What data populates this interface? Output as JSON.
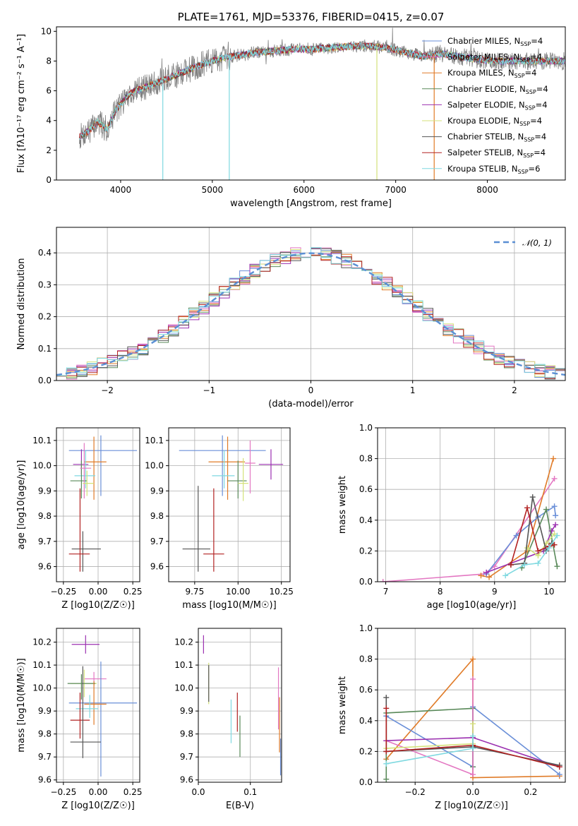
{
  "colors": {
    "Chabrier MILES": "#6a8fd8",
    "Salpeter MILES": "#e377c2",
    "Kroupa MILES": "#e07b28",
    "Chabrier ELODIE": "#5a8a5a",
    "Salpeter ELODIE": "#9b30b0",
    "Kroupa ELODIE": "#d4e27a",
    "Chabrier STELIB": "#555555",
    "Salpeter STELIB": "#b22222",
    "Kroupa STELIB": "#7fd9e0"
  },
  "chart_data": [
    {
      "id": "spectrum",
      "type": "line",
      "title": "PLATE=1761, MJD=53376, FIBERID=0415, z=0.07",
      "xlabel": "wavelength [Angstrom, rest frame]",
      "ylabel": "Flux [fλ10⁻¹⁷ erg cm⁻² s⁻¹ A⁻¹]",
      "xlim": [
        3300,
        8850
      ],
      "ylim": [
        0,
        10.3
      ],
      "xticks": [
        4000,
        5000,
        6000,
        7000,
        8000
      ],
      "yticks": [
        0,
        2,
        4,
        6,
        8,
        10
      ],
      "grid": false,
      "legend_position": "upper-right",
      "legend": [
        {
          "name": "Chabrier MILES, NSSP=4",
          "model": "Chabrier MILES"
        },
        {
          "name": "Salpeter MILES, NSSP=4",
          "model": "Salpeter MILES"
        },
        {
          "name": "Kroupa MILES, NSSP=4",
          "model": "Kroupa MILES"
        },
        {
          "name": "Chabrier ELODIE, NSSP=4",
          "model": "Chabrier ELODIE"
        },
        {
          "name": "Salpeter ELODIE, NSSP=4",
          "model": "Salpeter ELODIE"
        },
        {
          "name": "Kroupa ELODIE, NSSP=4",
          "model": "Kroupa ELODIE"
        },
        {
          "name": "Chabrier STELIB, NSSP=4",
          "model": "Chabrier STELIB"
        },
        {
          "name": "Salpeter STELIB, NSSP=4",
          "model": "Salpeter STELIB"
        },
        {
          "name": "Kroupa STELIB, NSSP=6",
          "model": "Kroupa STELIB"
        }
      ],
      "continuum": {
        "x": [
          3550,
          3650,
          3750,
          3850,
          3950,
          4050,
          4150,
          4300,
          4500,
          4700,
          4900,
          5100,
          5300,
          5500,
          5700,
          5900,
          6100,
          6300,
          6500,
          6700,
          6900,
          7100,
          7300,
          7500,
          7700,
          7900,
          8100,
          8300,
          8500,
          8700,
          8850
        ],
        "y": [
          2.9,
          3.3,
          3.9,
          3.4,
          4.7,
          5.5,
          6.0,
          6.3,
          6.8,
          7.3,
          7.8,
          8.2,
          8.4,
          8.6,
          8.7,
          8.8,
          8.8,
          8.9,
          9.0,
          9.0,
          8.9,
          8.6,
          8.3,
          8.5,
          8.3,
          8.1,
          8.0,
          8.0,
          8.0,
          8.0,
          8.0
        ]
      },
      "spikes": [
        {
          "x": 4460,
          "y": 0,
          "model": "Kroupa STELIB"
        },
        {
          "x": 5185,
          "y": 0,
          "model": "Kroupa STELIB"
        },
        {
          "x": 6795,
          "y": 0,
          "model": "Kroupa ELODIE"
        },
        {
          "x": 7420,
          "y": 0,
          "model": "Kroupa MILES"
        }
      ]
    },
    {
      "id": "residuals",
      "type": "histogram",
      "xlabel": "(data-model)/error",
      "ylabel": "Normed distribution",
      "xlim": [
        -2.5,
        2.5
      ],
      "ylim": [
        0,
        0.48
      ],
      "xticks": [
        -2,
        -1,
        0,
        1,
        2
      ],
      "yticks": [
        0.0,
        0.1,
        0.2,
        0.3,
        0.4
      ],
      "grid": true,
      "legend_position": "upper-right",
      "legend": [
        {
          "name": "𝒩(0, 1)",
          "style": "dashed",
          "color": "#5b8fd4"
        }
      ],
      "bin_width": 0.1
    },
    {
      "id": "age-vs-Z",
      "type": "errorbar",
      "xlabel": "Z [log10(Z/Z☉)]",
      "ylabel": "age  [log10(age/yr)]",
      "xlim": [
        -0.3,
        0.3
      ],
      "ylim": [
        9.54,
        10.15
      ],
      "xticks": [
        -0.25,
        0.0,
        0.25
      ],
      "yticks": [
        9.6,
        9.7,
        9.8,
        9.9,
        10.0,
        10.1
      ],
      "grid": true,
      "points": [
        {
          "model": "Chabrier MILES",
          "x": 0.02,
          "y": 10.06,
          "xerr": [
            0.23,
            0.26
          ],
          "yerr": [
            0.18,
            0.06
          ]
        },
        {
          "model": "Kroupa MILES",
          "x": -0.03,
          "y": 10.015,
          "xerr": [
            0.07,
            0.09
          ],
          "yerr": [
            0.15,
            0.1
          ]
        },
        {
          "model": "Salpeter ELODIE",
          "x": -0.12,
          "y": 10.005,
          "xerr": [
            0.06,
            0.05
          ],
          "yerr": [
            0.04,
            0.06
          ]
        },
        {
          "model": "Kroupa STELIB",
          "x": -0.09,
          "y": 9.96,
          "xerr": [
            0.08,
            0.07
          ],
          "yerr": [
            0.05,
            0.1
          ]
        },
        {
          "model": "Chabrier ELODIE",
          "x": -0.12,
          "y": 9.94,
          "xerr": [
            0.08,
            0.04
          ],
          "yerr": [
            0.07,
            0.08
          ]
        },
        {
          "model": "Chabrier STELIB",
          "x": -0.11,
          "y": 9.67,
          "xerr": [
            0.08,
            0.13
          ],
          "yerr": [
            0.09,
            0.07
          ]
        },
        {
          "model": "Salpeter STELIB",
          "x": -0.13,
          "y": 9.65,
          "xerr": [
            0.08,
            0.07
          ],
          "yerr": [
            0.07,
            0.26
          ]
        },
        {
          "model": "Salpeter MILES",
          "x": -0.1,
          "y": 9.99,
          "xerr": [
            0.03,
            0.05
          ],
          "yerr": [
            0.12,
            0.1
          ]
        },
        {
          "model": "Kroupa ELODIE",
          "x": -0.08,
          "y": 9.93,
          "xerr": [
            0.03,
            0.05
          ],
          "yerr": [
            0.05,
            0.05
          ]
        }
      ]
    },
    {
      "id": "age-vs-mass",
      "type": "errorbar",
      "xlabel": "mass [log10(M/M☉)]",
      "ylabel": "",
      "xlim": [
        9.6,
        10.3
      ],
      "ylim": [
        9.54,
        10.15
      ],
      "xticks": [
        9.75,
        10.0,
        10.25
      ],
      "yticks": [
        9.6,
        9.7,
        9.8,
        9.9,
        10.0,
        10.1
      ],
      "grid": true,
      "points": [
        {
          "model": "Chabrier MILES",
          "x": 9.91,
          "y": 10.06,
          "xerr": [
            0.25,
            0.25
          ],
          "yerr": [
            0.18,
            0.06
          ]
        },
        {
          "model": "Kroupa MILES",
          "x": 9.94,
          "y": 10.015,
          "xerr": [
            0.11,
            0.1
          ],
          "yerr": [
            0.15,
            0.1
          ]
        },
        {
          "model": "Salpeter ELODIE",
          "x": 10.19,
          "y": 10.005,
          "xerr": [
            0.07,
            0.07
          ],
          "yerr": [
            0.06,
            0.06
          ]
        },
        {
          "model": "Kroupa STELIB",
          "x": 9.92,
          "y": 9.96,
          "xerr": [
            0.07,
            0.06
          ],
          "yerr": [
            0.05,
            0.1
          ]
        },
        {
          "model": "Chabrier ELODIE",
          "x": 10.0,
          "y": 9.94,
          "xerr": [
            0.06,
            0.05
          ],
          "yerr": [
            0.07,
            0.08
          ]
        },
        {
          "model": "Chabrier STELIB",
          "x": 9.77,
          "y": 9.67,
          "xerr": [
            0.09,
            0.07
          ],
          "yerr": [
            0.09,
            0.25
          ]
        },
        {
          "model": "Salpeter STELIB",
          "x": 9.86,
          "y": 9.65,
          "xerr": [
            0.06,
            0.06
          ],
          "yerr": [
            0.07,
            0.26
          ]
        },
        {
          "model": "Salpeter MILES",
          "x": 10.07,
          "y": 10.01,
          "xerr": [
            0.03,
            0.03
          ],
          "yerr": [
            0.12,
            0.09
          ]
        },
        {
          "model": "Kroupa ELODIE",
          "x": 10.03,
          "y": 9.93,
          "xerr": [
            0.03,
            0.03
          ],
          "yerr": [
            0.07,
            0.1
          ]
        }
      ]
    },
    {
      "id": "mass-weight-vs-age",
      "type": "line",
      "xlabel": "age  [log10(age/yr)]",
      "ylabel": "mass weight",
      "xlim": [
        6.85,
        10.3
      ],
      "ylim": [
        0,
        1.0
      ],
      "xticks": [
        7,
        8,
        9,
        10
      ],
      "yticks": [
        0.0,
        0.2,
        0.4,
        0.6,
        0.8,
        1.0
      ],
      "grid": true,
      "series": [
        {
          "model": "Salpeter MILES",
          "x": [
            6.95,
            8.8,
            9.0,
            10.1
          ],
          "y": [
            0.0,
            0.05,
            0.1,
            0.67
          ]
        },
        {
          "model": "Kroupa MILES",
          "x": [
            8.75,
            8.9,
            9.6,
            10.08
          ],
          "y": [
            0.04,
            0.03,
            0.2,
            0.8
          ]
        },
        {
          "model": "Chabrier MILES",
          "x": [
            8.85,
            9.4,
            9.8,
            10.1,
            10.12
          ],
          "y": [
            0.05,
            0.3,
            0.42,
            0.49,
            0.43
          ]
        },
        {
          "model": "Salpeter ELODIE",
          "x": [
            8.85,
            9.9,
            10.05,
            10.12
          ],
          "y": [
            0.06,
            0.2,
            0.33,
            0.37
          ]
        },
        {
          "model": "Chabrier ELODIE",
          "x": [
            9.5,
            9.95,
            10.15
          ],
          "y": [
            0.09,
            0.47,
            0.1
          ]
        },
        {
          "model": "Kroupa ELODIE",
          "x": [
            9.6,
            9.8,
            9.95,
            10.1
          ],
          "y": [
            0.22,
            0.17,
            0.25,
            0.31
          ]
        },
        {
          "model": "Chabrier STELIB",
          "x": [
            9.3,
            9.55,
            9.7,
            9.95,
            10.05
          ],
          "y": [
            0.11,
            0.12,
            0.55,
            0.2,
            0.25
          ]
        },
        {
          "model": "Salpeter STELIB",
          "x": [
            9.3,
            9.6,
            9.8,
            10.0,
            10.1
          ],
          "y": [
            0.11,
            0.48,
            0.2,
            0.23,
            0.24
          ]
        },
        {
          "model": "Kroupa STELIB",
          "x": [
            9.2,
            9.55,
            9.8,
            10.0,
            10.15
          ],
          "y": [
            0.04,
            0.11,
            0.12,
            0.22,
            0.3
          ]
        }
      ]
    },
    {
      "id": "mass-vs-Z",
      "type": "errorbar",
      "xlabel": "Z [log10(Z/Z☉)]",
      "ylabel": "mass [log10(M/M☉)]",
      "xlim": [
        -0.3,
        0.3
      ],
      "ylim": [
        9.59,
        10.26
      ],
      "xticks": [
        -0.25,
        0.0,
        0.25
      ],
      "yticks": [
        9.6,
        9.7,
        9.8,
        9.9,
        10.0,
        10.1,
        10.2
      ],
      "grid": true,
      "points": [
        {
          "model": "Salpeter ELODIE",
          "x": -0.09,
          "y": 10.19,
          "xerr": [
            0.1,
            0.1
          ],
          "yerr": [
            0.04,
            0.04
          ]
        },
        {
          "model": "Salpeter MILES",
          "x": -0.03,
          "y": 10.04,
          "xerr": [
            0.07,
            0.09
          ],
          "yerr": [
            0.03,
            0.03
          ]
        },
        {
          "model": "Kroupa ELODIE",
          "x": -0.1,
          "y": 10.02,
          "xerr": [
            0.1,
            0.09
          ],
          "yerr": [
            0.06,
            0.06
          ]
        },
        {
          "model": "Chabrier ELODIE",
          "x": -0.12,
          "y": 10.02,
          "xerr": [
            0.1,
            0.1
          ],
          "yerr": [
            0.07,
            0.04
          ]
        },
        {
          "model": "Chabrier MILES",
          "x": 0.02,
          "y": 9.935,
          "xerr": [
            0.23,
            0.26
          ],
          "yerr": [
            0.32,
            0.18
          ]
        },
        {
          "model": "Kroupa MILES",
          "x": -0.03,
          "y": 9.93,
          "xerr": [
            0.07,
            0.09
          ],
          "yerr": [
            0.09,
            0.1
          ]
        },
        {
          "model": "Kroupa STELIB",
          "x": -0.06,
          "y": 9.91,
          "xerr": [
            0.1,
            0.06
          ],
          "yerr": [
            0.04,
            0.06
          ]
        },
        {
          "model": "Salpeter STELIB",
          "x": -0.13,
          "y": 9.86,
          "xerr": [
            0.07,
            0.07
          ],
          "yerr": [
            0.08,
            0.12
          ]
        },
        {
          "model": "Chabrier STELIB",
          "x": -0.11,
          "y": 9.765,
          "xerr": [
            0.09,
            0.13
          ],
          "yerr": [
            0.07,
            0.33
          ]
        }
      ]
    },
    {
      "id": "mass-vs-EBV",
      "type": "errorbar",
      "xlabel": "E(B-V)",
      "ylabel": "",
      "xlim": [
        0.0,
        0.16
      ],
      "ylim": [
        9.59,
        10.26
      ],
      "xticks": [
        0.0,
        0.1
      ],
      "yticks": [
        9.6,
        9.7,
        9.8,
        9.9,
        10.0,
        10.1,
        10.2
      ],
      "grid": true,
      "points": [
        {
          "model": "Salpeter ELODIE",
          "x": 0.01,
          "y": 10.19,
          "xerr": [
            0,
            0
          ],
          "yerr": [
            0.04,
            0.04
          ]
        },
        {
          "model": "Kroupa ELODIE",
          "x": 0.02,
          "y": 10.02,
          "xerr": [
            0,
            0
          ],
          "yerr": [
            0.09,
            0.09
          ]
        },
        {
          "model": "Chabrier STELIB",
          "x": 0.02,
          "y": 10.02,
          "xerr": [
            0,
            0
          ],
          "yerr": [
            0.08,
            0.08
          ]
        },
        {
          "model": "Kroupa STELIB",
          "x": 0.063,
          "y": 9.85,
          "xerr": [
            0,
            0
          ],
          "yerr": [
            0.09,
            0.1
          ]
        },
        {
          "model": "Salpeter STELIB",
          "x": 0.075,
          "y": 9.9,
          "xerr": [
            0,
            0
          ],
          "yerr": [
            0.09,
            0.08
          ]
        },
        {
          "model": "Chabrier ELODIE",
          "x": 0.08,
          "y": 9.79,
          "xerr": [
            0,
            0
          ],
          "yerr": [
            0.09,
            0.09
          ]
        },
        {
          "model": "Salpeter MILES",
          "x": 0.154,
          "y": 9.95,
          "xerr": [
            0,
            0
          ],
          "yerr": [
            0.13,
            0.14
          ]
        },
        {
          "model": "Kroupa MILES",
          "x": 0.156,
          "y": 9.82,
          "xerr": [
            0,
            0
          ],
          "yerr": [
            0.1,
            0.14
          ]
        },
        {
          "model": "Chabrier MILES",
          "x": 0.158,
          "y": 9.7,
          "xerr": [
            0,
            0
          ],
          "yerr": [
            0.08,
            0.08
          ]
        }
      ]
    },
    {
      "id": "mass-weight-vs-Z",
      "type": "line",
      "xlabel": "Z [log10(Z/Z☉)]",
      "ylabel": "mass weight",
      "xlim": [
        -0.33,
        0.32
      ],
      "ylim": [
        0,
        1.0
      ],
      "xticks": [
        -0.2,
        0.0,
        0.2
      ],
      "yticks": [
        0.0,
        0.2,
        0.4,
        0.6,
        0.8,
        1.0
      ],
      "grid": true,
      "series": [
        {
          "model": "Kroupa MILES",
          "x": [
            -0.3,
            0.0,
            0.0,
            0.3
          ],
          "y": [
            0.15,
            0.8,
            0.03,
            0.04
          ]
        },
        {
          "model": "Chabrier MILES",
          "x": [
            -0.3,
            0.0,
            0.0,
            0.3
          ],
          "y": [
            0.43,
            0.1,
            0.49,
            0.05
          ]
        },
        {
          "model": "Chabrier ELODIE",
          "x": [
            -0.3,
            -0.3,
            0.0,
            0.0
          ],
          "y": [
            0.02,
            0.45,
            0.48,
            0.1
          ]
        },
        {
          "model": "Salpeter MILES",
          "x": [
            -0.3,
            0.0,
            0.0
          ],
          "y": [
            0.27,
            0.05,
            0.67
          ]
        },
        {
          "model": "Salpeter ELODIE",
          "x": [
            -0.3,
            0.0,
            0.3
          ],
          "y": [
            0.27,
            0.29,
            0.1
          ]
        },
        {
          "model": "Kroupa ELODIE",
          "x": [
            -0.3,
            0.0,
            0.0
          ],
          "y": [
            0.22,
            0.25,
            0.38
          ]
        },
        {
          "model": "Chabrier STELIB",
          "x": [
            -0.3,
            -0.3,
            0.0,
            0.3
          ],
          "y": [
            0.55,
            0.2,
            0.23,
            0.11
          ]
        },
        {
          "model": "Salpeter STELIB",
          "x": [
            -0.3,
            -0.3,
            0.0,
            0.3
          ],
          "y": [
            0.48,
            0.2,
            0.24,
            0.1
          ]
        },
        {
          "model": "Kroupa STELIB",
          "x": [
            -0.3,
            0.0,
            0.0
          ],
          "y": [
            0.12,
            0.22,
            0.3
          ]
        }
      ]
    }
  ]
}
